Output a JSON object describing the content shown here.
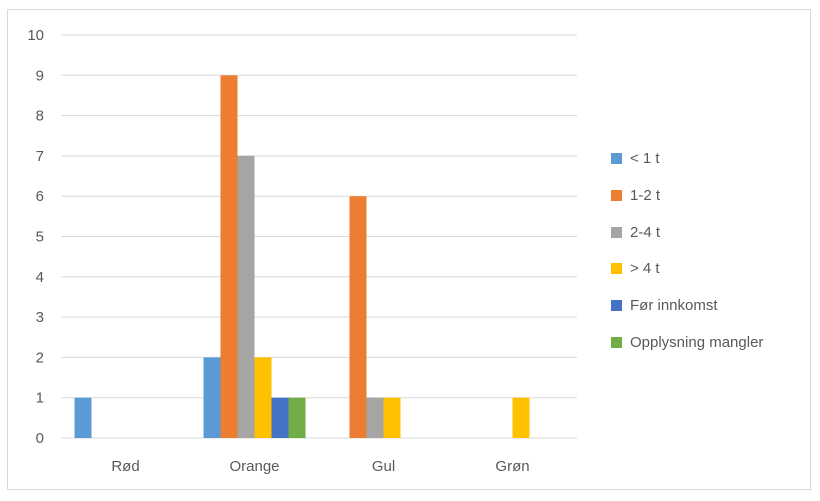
{
  "chart_data": {
    "type": "bar",
    "categories": [
      "Rød",
      "Orange",
      "Gul",
      "Grøn"
    ],
    "series": [
      {
        "name": "< 1 t",
        "color": "#5B9BD5",
        "values": [
          1,
          2,
          0,
          0
        ]
      },
      {
        "name": "1-2 t",
        "color": "#ED7D31",
        "values": [
          0,
          9,
          6,
          0
        ]
      },
      {
        "name": "2-4 t",
        "color": "#A5A5A5",
        "values": [
          0,
          7,
          1,
          0
        ]
      },
      {
        "name": "> 4 t",
        "color": "#FFC000",
        "values": [
          0,
          2,
          1,
          1
        ]
      },
      {
        "name": "Før innkomst",
        "color": "#4472C4",
        "values": [
          0,
          1,
          0,
          0
        ]
      },
      {
        "name": "Opplysning mangler",
        "color": "#70AD47",
        "values": [
          0,
          1,
          0,
          0
        ]
      }
    ],
    "y_ticks": [
      "0",
      "1",
      "2",
      "3",
      "4",
      "5",
      "6",
      "7",
      "8",
      "9",
      "10"
    ],
    "ylim": [
      0,
      10
    ],
    "title": "",
    "xlabel": "",
    "ylabel": "",
    "grid": true,
    "legend_position": "right"
  }
}
